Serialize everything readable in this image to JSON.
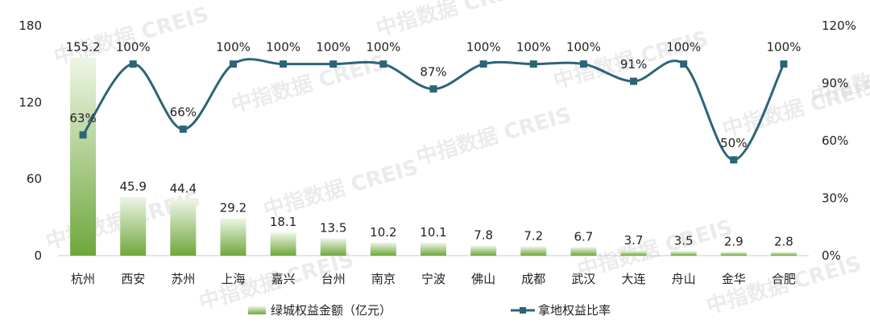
{
  "watermark": "中指数据 CREIS",
  "chart_data": {
    "type": "bar",
    "categories": [
      "杭州",
      "西安",
      "苏州",
      "上海",
      "嘉兴",
      "台州",
      "南京",
      "宁波",
      "佛山",
      "成都",
      "武汉",
      "大连",
      "舟山",
      "金华",
      "合肥"
    ],
    "series": [
      {
        "name": "绿城权益金额（亿元）",
        "type": "bar",
        "axis": "left",
        "values": [
          155.2,
          45.9,
          44.4,
          29.2,
          18.1,
          13.5,
          10.2,
          10.1,
          7.8,
          7.2,
          6.7,
          3.7,
          3.5,
          2.9,
          2.8
        ],
        "labels": [
          "155.2",
          "45.9",
          "44.4",
          "29.2",
          "18.1",
          "13.5",
          "10.2",
          "10.1",
          "7.8",
          "7.2",
          "6.7",
          "3.7",
          "3.5",
          "2.9",
          "2.8"
        ]
      },
      {
        "name": "拿地权益比率",
        "type": "line",
        "axis": "right",
        "values": [
          63,
          100,
          66,
          100,
          100,
          100,
          100,
          87,
          100,
          100,
          100,
          91,
          100,
          50,
          100
        ],
        "labels": [
          "63%",
          "100%",
          "66%",
          "100%",
          "100%",
          "100%",
          "100%",
          "87%",
          "100%",
          "100%",
          "100%",
          "91%",
          "100%",
          "50%",
          "100%"
        ]
      }
    ],
    "y_left": {
      "min": 0,
      "max": 180,
      "ticks": [
        "0",
        "60",
        "120",
        "180"
      ],
      "tick_values": [
        0,
        60,
        120,
        180
      ]
    },
    "y_right": {
      "min": 0,
      "max": 120,
      "ticks": [
        "0%",
        "30%",
        "60%",
        "90%",
        "120%"
      ],
      "tick_values": [
        0,
        30,
        60,
        90,
        120
      ]
    },
    "grid": false,
    "legend": "bottom",
    "colors": {
      "bar_dark": "#72a83f",
      "bar_light": "#eef6e6",
      "line": "#2c6477",
      "axis": "#c8c8c8"
    }
  }
}
